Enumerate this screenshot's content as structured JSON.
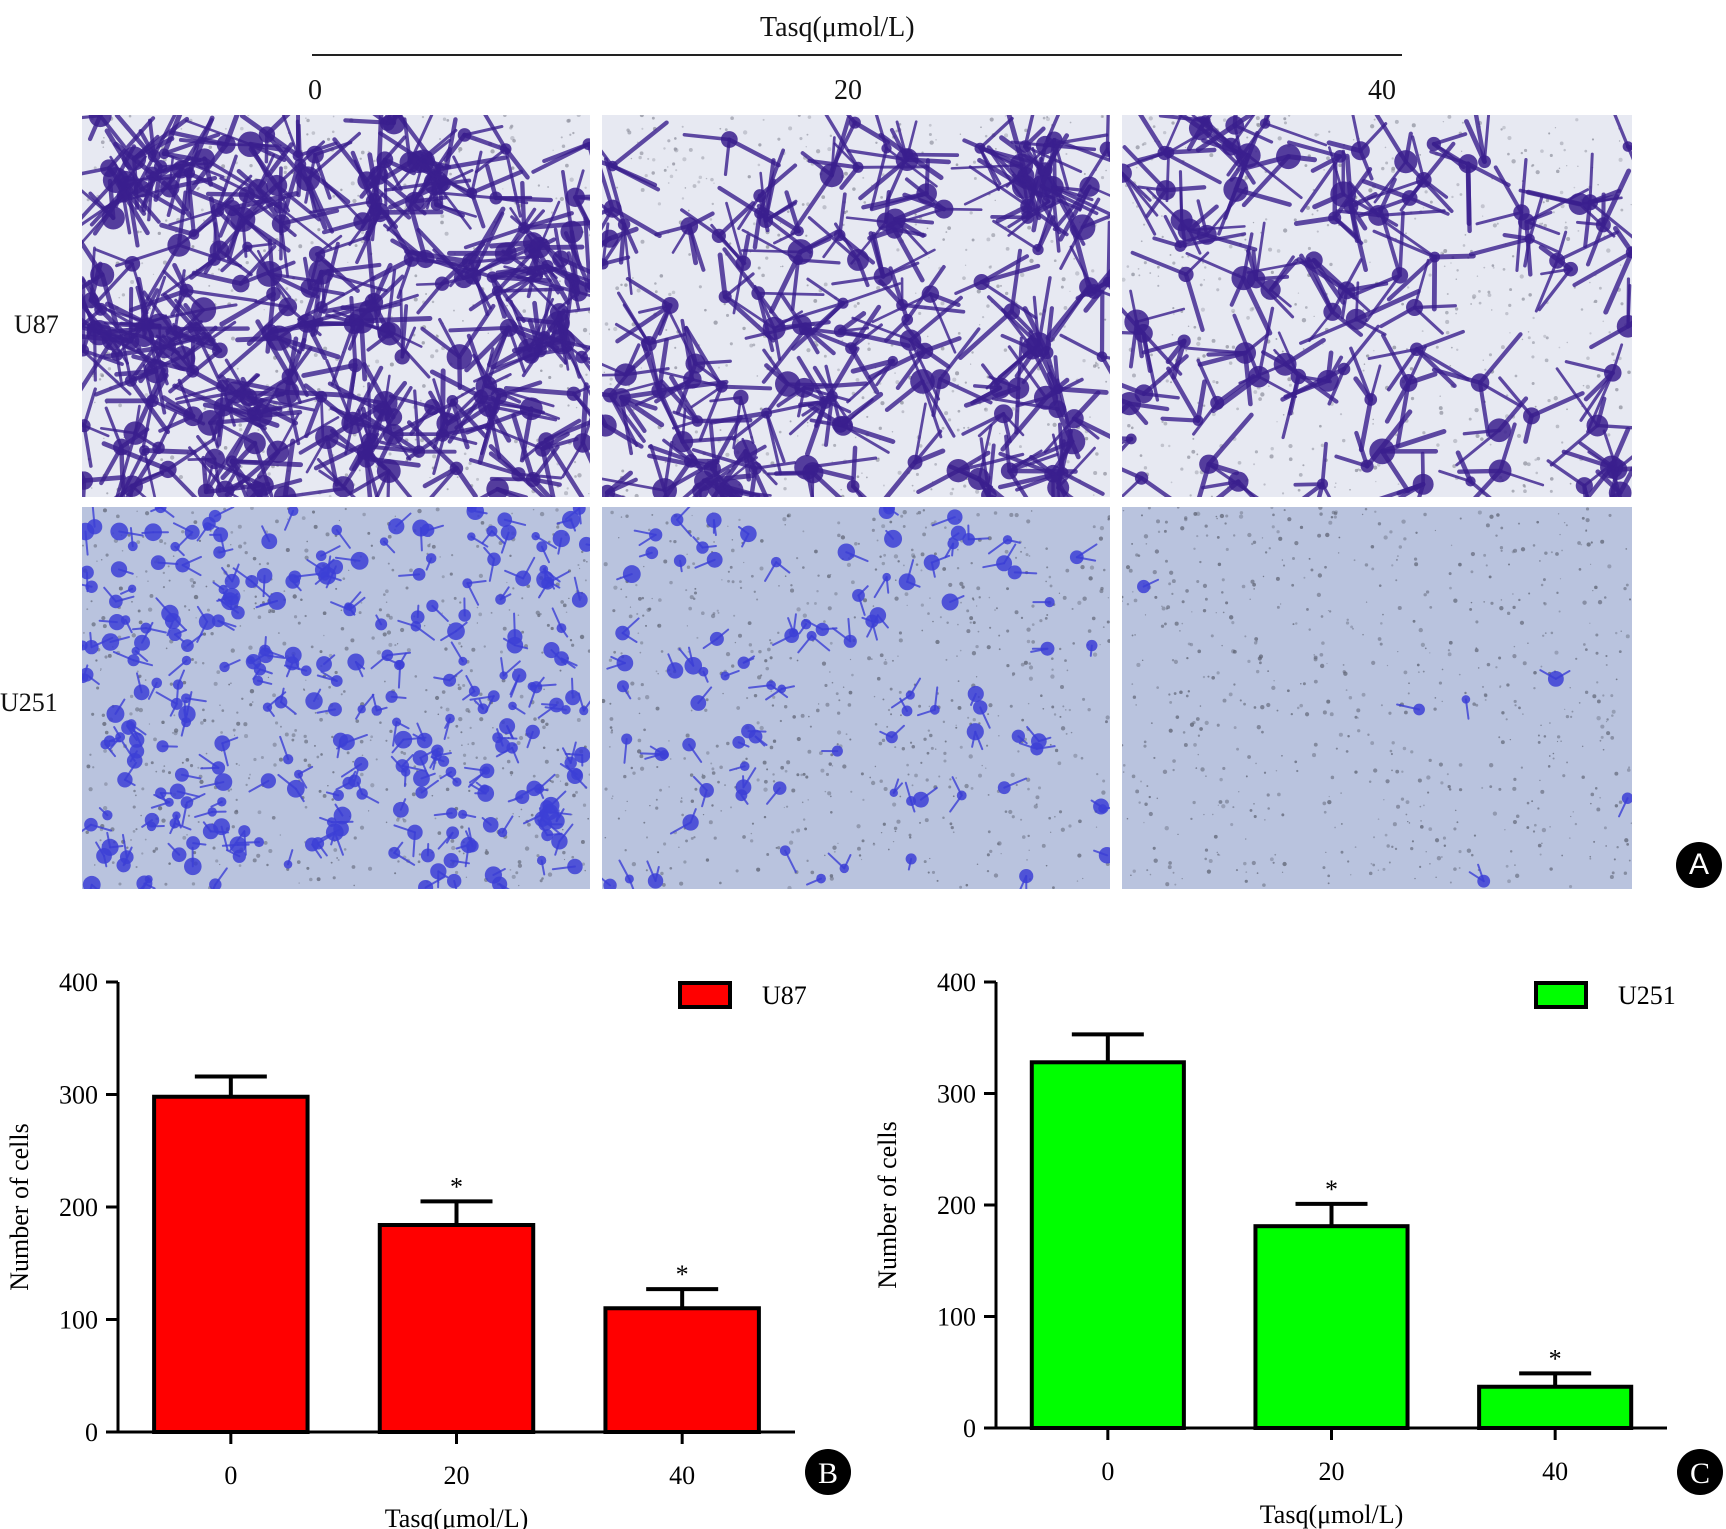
{
  "header": {
    "treatment_label": "Tasq(μmol/L)",
    "doses": [
      "0",
      "20",
      "40"
    ]
  },
  "micrographs": {
    "rows": [
      "U87",
      "U251"
    ],
    "badge": "A"
  },
  "chart_data": [
    {
      "type": "bar",
      "badge": "B",
      "categories": [
        "0",
        "20",
        "40"
      ],
      "series": [
        {
          "name": "U87",
          "values": [
            298,
            184,
            110
          ],
          "errors": [
            18,
            21,
            17
          ],
          "color": "#ff0000"
        }
      ],
      "significance": [
        "",
        "*",
        "*"
      ],
      "xlabel": "Tasq(μmol/L)",
      "ylabel": "Number of cells",
      "ylim": [
        0,
        400
      ],
      "yticks": [
        "0",
        "100",
        "200",
        "300",
        "400"
      ],
      "legend": "top-right"
    },
    {
      "type": "bar",
      "badge": "C",
      "categories": [
        "0",
        "20",
        "40"
      ],
      "series": [
        {
          "name": "U251",
          "values": [
            328,
            181,
            37
          ],
          "errors": [
            25,
            20,
            12
          ],
          "color": "#00ff00"
        }
      ],
      "significance": [
        "",
        "*",
        "*"
      ],
      "xlabel": "Tasq(μmol/L)",
      "ylabel": "Number of cells",
      "ylim": [
        0,
        400
      ],
      "yticks": [
        "0",
        "100",
        "200",
        "300",
        "400"
      ],
      "legend": "top-right"
    }
  ]
}
